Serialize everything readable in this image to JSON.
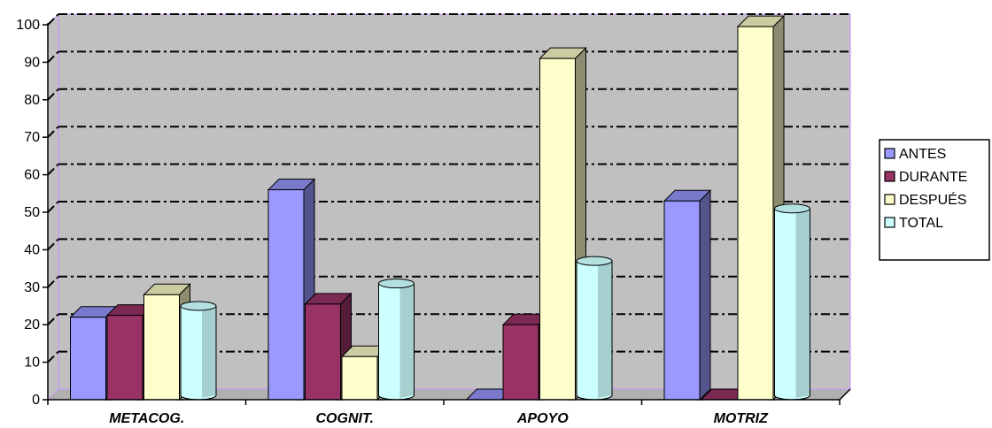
{
  "chart_data": {
    "type": "bar",
    "categories": [
      "METACOG.",
      "COGNIT.",
      "APOYO",
      "MOTRIZ"
    ],
    "series": [
      {
        "name": "ANTES",
        "values": [
          22,
          56,
          0,
          53
        ],
        "color": "#9999ff",
        "shape": "box"
      },
      {
        "name": "DURANTE",
        "values": [
          22.5,
          25.5,
          20,
          0
        ],
        "color": "#993366",
        "shape": "box"
      },
      {
        "name": "DESPUÉS",
        "values": [
          28,
          11.5,
          91,
          99.5
        ],
        "color": "#ffffcc",
        "shape": "box"
      },
      {
        "name": "TOTAL",
        "values": [
          25,
          31,
          37,
          51
        ],
        "color": "#ccffff",
        "shape": "cylinder"
      }
    ],
    "yticks": [
      "0",
      "10",
      "20",
      "30",
      "40",
      "50",
      "60",
      "70",
      "80",
      "90",
      "100"
    ],
    "ylim": [
      0,
      100
    ],
    "grid": true,
    "legend_position": "right",
    "plot_background": "#c0c0c0",
    "frame_color": "#cc99ff"
  }
}
